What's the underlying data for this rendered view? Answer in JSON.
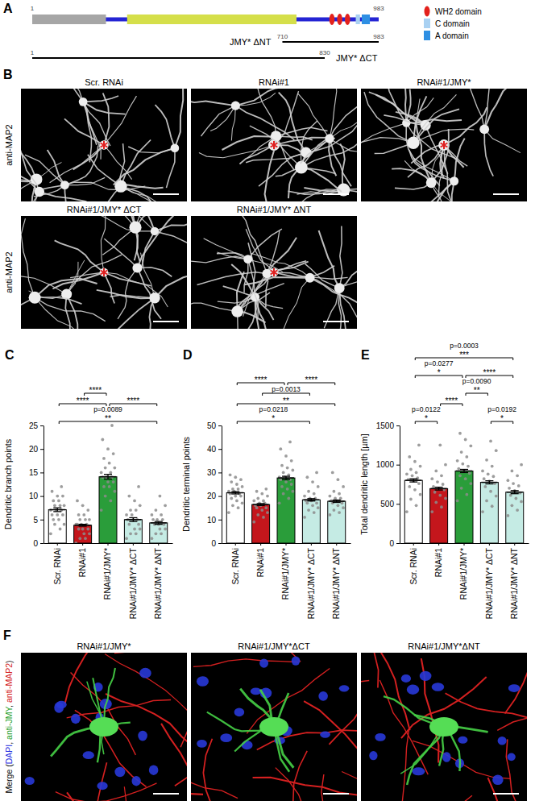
{
  "domain_diagram": {
    "panel_label": "A",
    "start": 1,
    "end": 983,
    "color": "#2424d4",
    "features": [
      {
        "type": "box",
        "start": 1,
        "end": 210,
        "color": "#a6a6a6"
      },
      {
        "type": "box",
        "start": 270,
        "end": 750,
        "color": "#d5df4a"
      },
      {
        "type": "ellipse",
        "start": 843,
        "end": 858,
        "color": "#e3211c"
      },
      {
        "type": "ellipse",
        "start": 865,
        "end": 880,
        "color": "#e3211c"
      },
      {
        "type": "ellipse",
        "start": 887,
        "end": 902,
        "color": "#e3211c"
      },
      {
        "type": "box",
        "start": 918,
        "end": 930,
        "color": "#a9d1f2"
      },
      {
        "type": "box",
        "start": 935,
        "end": 958,
        "color": "#2e8fe3"
      }
    ],
    "constructs": [
      {
        "name": "JMY* ΔNT",
        "start": 710,
        "end": 983
      },
      {
        "name": "JMY* ΔCT",
        "start": 1,
        "end": 830
      }
    ],
    "legend": [
      {
        "label": "WH2 domain",
        "color": "#e3211c",
        "marker": "ellipse"
      },
      {
        "label": "C domain",
        "color": "#a9d1f2",
        "marker": "box"
      },
      {
        "label": "A domain",
        "color": "#2e8fe3",
        "marker": "box"
      }
    ]
  },
  "image_panels": [
    {
      "panel_label": "B",
      "row_label": "anti-MAP2",
      "rows": [
        [
          "Scr. RNAi",
          "RNAi#1",
          "RNAi#1/JMY*"
        ],
        [
          "RNAi#1/JMY* ΔCT",
          "RNAi#1/JMY* ΔNT"
        ]
      ]
    },
    {
      "panel_label": "F",
      "row_label": [
        {
          "text": "Merge (",
          "color": "#000000"
        },
        {
          "text": "DAPI",
          "color": "#1f2fe0"
        },
        {
          "text": ", ",
          "color": "#000000"
        },
        {
          "text": "anti-JMY",
          "color": "#1fa02a"
        },
        {
          "text": ", ",
          "color": "#000000"
        },
        {
          "text": "anti-MAP2",
          "color": "#d42020"
        },
        {
          "text": ")",
          "color": "#000000"
        }
      ],
      "rows": [
        [
          "RNAi#1/JMY*",
          "RNAi#1/JMY*ΔCT",
          "RNAi#1/JMY*ΔNT"
        ]
      ]
    }
  ],
  "chart_data": [
    {
      "type": "bar",
      "panel_label": "C",
      "y_label": "Dendritic branch points",
      "categories": [
        "Scr. RNAi",
        "RNAi#1",
        "RNAi#1/JMY*",
        "RNAi#1/JMY* ΔCT",
        "RNAi#1/JMY* ΔNT"
      ],
      "values": [
        7.1,
        3.8,
        14.1,
        5.0,
        4.3
      ],
      "errors": [
        0.4,
        0.2,
        0.5,
        0.4,
        0.3
      ],
      "colors": [
        "#ffffff",
        "#c4161c",
        "#2a9d3a",
        "#c5ebe4",
        "#c5ebe4"
      ],
      "points": [
        [
          2,
          3,
          4,
          4,
          5,
          5,
          6,
          6,
          6,
          7,
          7,
          7,
          8,
          8,
          8,
          9,
          9,
          10,
          10,
          11,
          12
        ],
        [
          0,
          1,
          1,
          2,
          2,
          3,
          3,
          3,
          4,
          4,
          4,
          4,
          5,
          5,
          5,
          6,
          6,
          7,
          8,
          9
        ],
        [
          7,
          9,
          10,
          11,
          12,
          12,
          13,
          13,
          14,
          14,
          14,
          15,
          15,
          16,
          16,
          17,
          18,
          19,
          20,
          22,
          25
        ],
        [
          1,
          2,
          2,
          3,
          3,
          4,
          4,
          5,
          5,
          5,
          6,
          6,
          7,
          7,
          8,
          9,
          10,
          12
        ],
        [
          1,
          2,
          2,
          3,
          3,
          4,
          4,
          4,
          5,
          5,
          5,
          6,
          6,
          7,
          8,
          10
        ]
      ],
      "ylim": [
        0,
        25
      ],
      "yticks": [
        0,
        5,
        10,
        15,
        20,
        25
      ],
      "comparisons": [
        {
          "from": 0,
          "to": 4,
          "p": "p=0.0089",
          "stars": "**"
        },
        {
          "from": 0,
          "to": 2,
          "stars": "****"
        },
        {
          "from": 1,
          "to": 2,
          "stars": "****"
        },
        {
          "from": 2,
          "to": 4,
          "stars": "****"
        }
      ]
    },
    {
      "type": "bar",
      "panel_label": "D",
      "y_label": "Dendritic terminal points",
      "categories": [
        "Scr. RNAi",
        "RNAi#1",
        "RNAi#1/JMY*",
        "RNAi#1/JMY* ΔCT",
        "RNAi#1/JMY* ΔNT"
      ],
      "values": [
        21.4,
        16.4,
        27.7,
        18.4,
        17.8
      ],
      "errors": [
        0.5,
        0.4,
        0.7,
        0.5,
        0.5
      ],
      "colors": [
        "#ffffff",
        "#c4161c",
        "#2a9d3a",
        "#c5ebe4",
        "#c5ebe4"
      ],
      "points": [
        [
          13,
          15,
          16,
          17,
          18,
          19,
          20,
          20,
          21,
          21,
          22,
          22,
          23,
          23,
          24,
          25,
          26,
          27,
          28,
          29
        ],
        [
          9,
          11,
          12,
          13,
          14,
          15,
          15,
          16,
          16,
          17,
          17,
          18,
          18,
          19,
          20,
          21,
          22,
          23
        ],
        [
          17,
          19,
          21,
          22,
          23,
          24,
          25,
          26,
          27,
          27,
          28,
          28,
          29,
          30,
          31,
          32,
          33,
          35,
          37,
          40,
          43
        ],
        [
          11,
          13,
          14,
          15,
          16,
          17,
          17,
          18,
          18,
          19,
          19,
          20,
          21,
          22,
          24,
          26,
          28,
          30
        ],
        [
          12,
          13,
          14,
          15,
          16,
          17,
          17,
          18,
          18,
          19,
          19,
          20,
          21,
          22,
          24,
          27,
          30
        ]
      ],
      "ylim": [
        0,
        50
      ],
      "yticks": [
        0,
        10,
        20,
        30,
        40,
        50
      ],
      "comparisons": [
        {
          "from": 0,
          "to": 3,
          "p": "p=0.0218",
          "stars": "*"
        },
        {
          "from": 0,
          "to": 4,
          "stars": "**"
        },
        {
          "from": 1,
          "to": 3,
          "p": "p=0.0013"
        },
        {
          "from": 0,
          "to": 2,
          "stars": "****"
        },
        {
          "from": 2,
          "to": 4,
          "stars": "****"
        }
      ]
    },
    {
      "type": "bar",
      "panel_label": "E",
      "y_label": "Total dendritic length [µm]",
      "categories": [
        "Scr. RNAi",
        "RNAi#1",
        "RNAi#1/JMY*",
        "RNAi#1/JMY* ΔCT",
        "RNAi#1/JMY* ΔNT"
      ],
      "values": [
        800,
        695,
        920,
        775,
        650
      ],
      "errors": [
        20,
        18,
        20,
        20,
        20
      ],
      "colors": [
        "#ffffff",
        "#c4161c",
        "#2a9d3a",
        "#c5ebe4",
        "#c5ebe4"
      ],
      "points": [
        [
          400,
          480,
          560,
          620,
          680,
          720,
          760,
          790,
          810,
          830,
          860,
          880,
          900,
          940,
          980,
          1040,
          1100,
          1250
        ],
        [
          400,
          460,
          520,
          570,
          610,
          650,
          680,
          700,
          720,
          750,
          780,
          820,
          860,
          920,
          1000,
          1250
        ],
        [
          540,
          620,
          700,
          760,
          820,
          860,
          890,
          920,
          950,
          980,
          1010,
          1050,
          1100,
          1160,
          1240,
          1320,
          1400
        ],
        [
          400,
          470,
          540,
          600,
          660,
          720,
          760,
          790,
          820,
          850,
          880,
          920,
          980,
          1060,
          1180,
          1300
        ],
        [
          350,
          420,
          480,
          530,
          570,
          610,
          640,
          670,
          700,
          730,
          760,
          800,
          860,
          920,
          1000
        ]
      ],
      "ylim": [
        0,
        1500
      ],
      "yticks": [
        0,
        500,
        1000,
        1500
      ],
      "comparisons": [
        {
          "from": 3,
          "to": 4,
          "p": "p=0.0192",
          "stars": "*"
        },
        {
          "from": 0,
          "to": 1,
          "p": "p=0.0122",
          "stars": "*"
        },
        {
          "from": 1,
          "to": 2,
          "stars": "****"
        },
        {
          "from": 2,
          "to": 3,
          "p": "p=0.0090",
          "stars": "**"
        },
        {
          "from": 0,
          "to": 2,
          "p": "p=0.0277",
          "stars": "*"
        },
        {
          "from": 2,
          "to": 4,
          "stars": "****"
        },
        {
          "from": 0,
          "to": 4,
          "p": "p=0.0003",
          "stars": "***"
        }
      ]
    }
  ]
}
